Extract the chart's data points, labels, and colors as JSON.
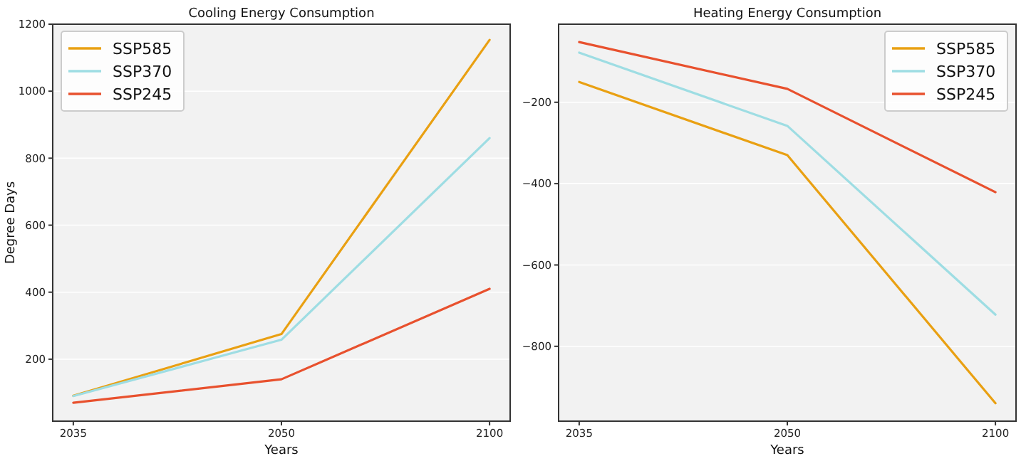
{
  "chart_data": [
    {
      "type": "line",
      "title": "Cooling Energy Consumption",
      "xlabel": "Years",
      "ylabel": "Degree Days",
      "categories": [
        "2035",
        "2050",
        "2100"
      ],
      "series": [
        {
          "name": "SSP585",
          "color": "#e9a012",
          "values": [
            91,
            275,
            1153
          ]
        },
        {
          "name": "SSP370",
          "color": "#9edde3",
          "values": [
            90,
            258,
            860
          ]
        },
        {
          "name": "SSP245",
          "color": "#e8512e",
          "values": [
            70,
            140,
            410
          ]
        }
      ],
      "ylim": [
        15,
        1200
      ],
      "yticks": [
        200,
        400,
        600,
        800,
        1000,
        1200
      ],
      "grid": "y",
      "legend": "top left"
    },
    {
      "type": "line",
      "title": "Heating Energy Consumption",
      "xlabel": "Years",
      "categories": [
        "2035",
        "2050",
        "2100"
      ],
      "series": [
        {
          "name": "SSP585",
          "color": "#e9a012",
          "values": [
            -150,
            -330,
            -940
          ]
        },
        {
          "name": "SSP370",
          "color": "#9edde3",
          "values": [
            -78,
            -258,
            -722
          ]
        },
        {
          "name": "SSP245",
          "color": "#e8512e",
          "values": [
            -52,
            -167,
            -421
          ]
        }
      ],
      "ylim": [
        -984,
        -8
      ],
      "yticks": [
        {
          "value": -200,
          "label": "−200"
        },
        {
          "value": -400,
          "label": "−400"
        },
        {
          "value": -600,
          "label": "−600"
        },
        {
          "value": -800,
          "label": "−800"
        }
      ],
      "grid": "y",
      "legend": "top right"
    }
  ]
}
